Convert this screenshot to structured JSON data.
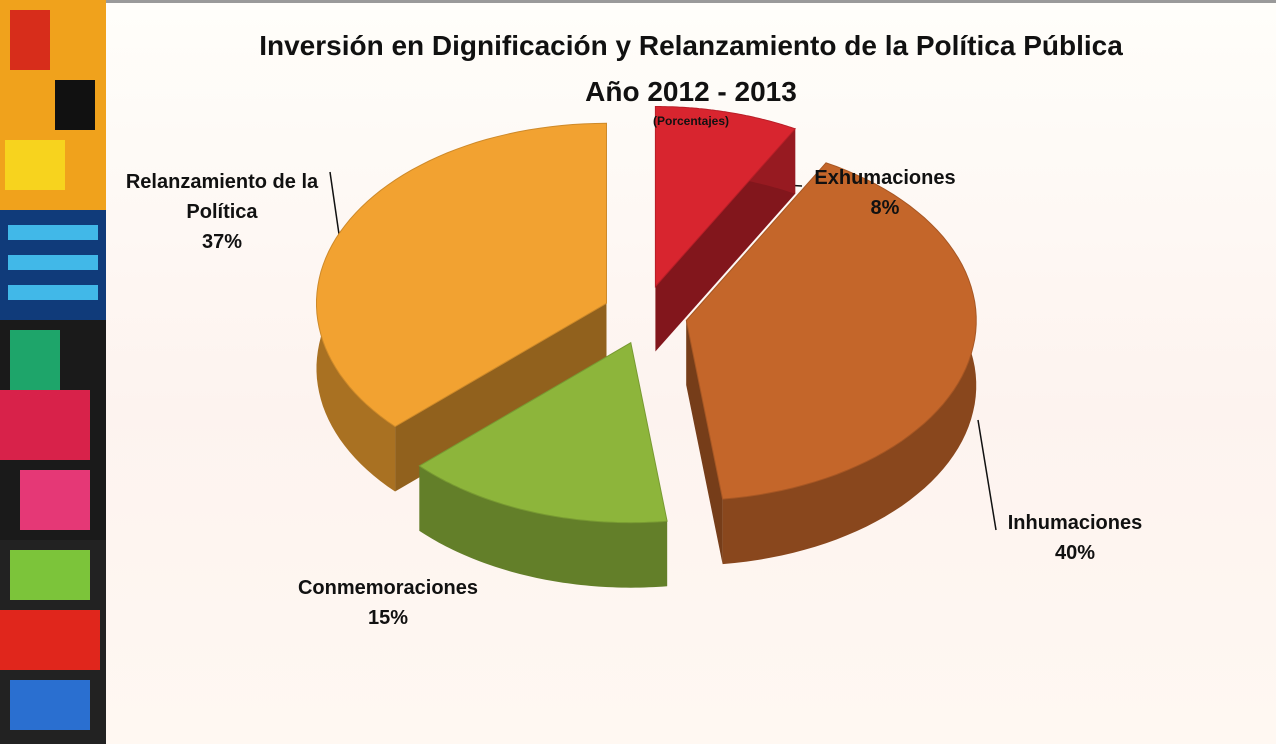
{
  "chart_data": {
    "type": "pie3d",
    "title": "Inversión en Dignificación  y Relanzamiento de la Política Pública",
    "subtitle": "Año 2012 - 2013",
    "note": "(Porcentajes)",
    "categories": [
      "Exhumaciones",
      "Inhumaciones",
      "Conmemoraciones",
      "Relanzamiento de la Política"
    ],
    "values": [
      8,
      40,
      15,
      37
    ],
    "value_labels": [
      "8%",
      "40%",
      "15%",
      "37%"
    ],
    "colors": [
      "#d8252f",
      "#c4662a",
      "#8db53b",
      "#f2a231"
    ]
  }
}
